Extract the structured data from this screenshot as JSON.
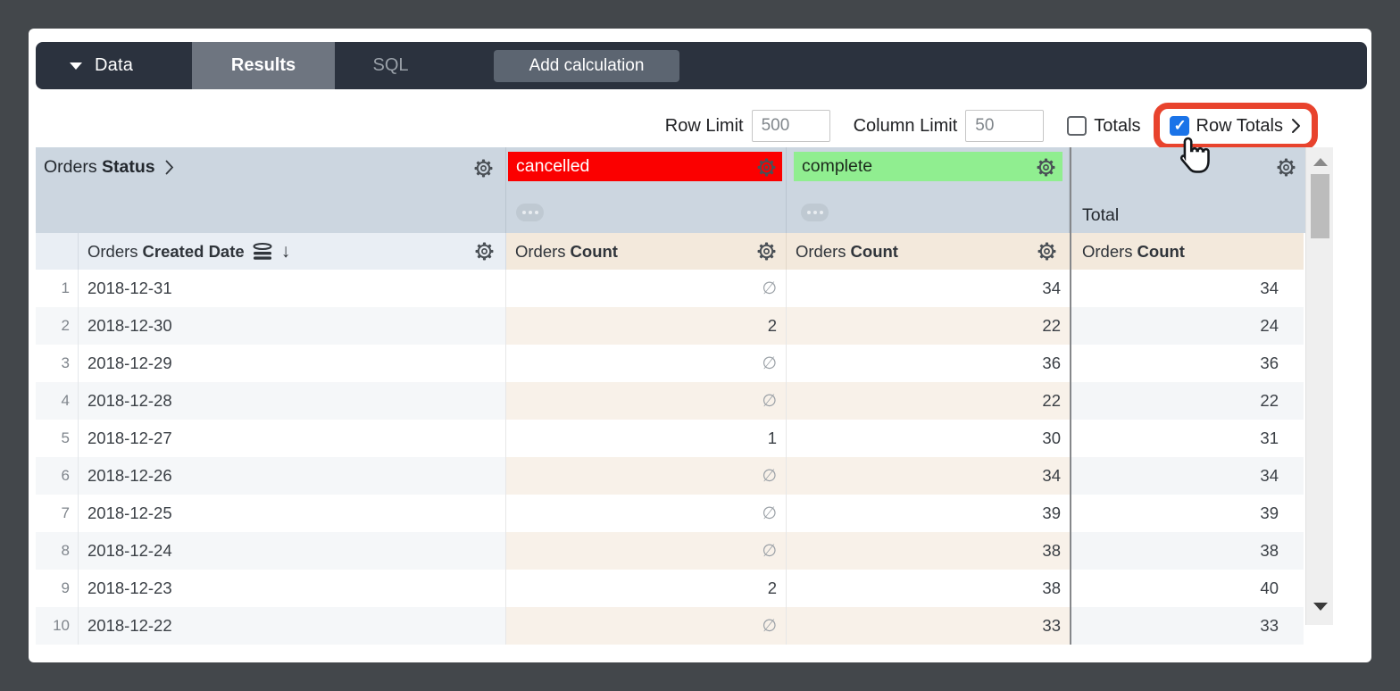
{
  "topbar": {
    "data_menu": "Data",
    "tabs": [
      {
        "label": "Results",
        "active": true
      },
      {
        "label": "SQL",
        "active": false
      }
    ],
    "add_calculation": "Add calculation"
  },
  "controls": {
    "row_limit_label": "Row Limit",
    "row_limit_value": "500",
    "column_limit_label": "Column Limit",
    "column_limit_value": "50",
    "totals_label": "Totals",
    "totals_checked": false,
    "row_totals_label": "Row Totals",
    "row_totals_checked": true
  },
  "pivot_header": {
    "rows_label_prefix": "Orders",
    "rows_label_bold": "Status",
    "columns": [
      {
        "label": "cancelled",
        "bg": "#fb0000",
        "text": "#ffffff"
      },
      {
        "label": "complete",
        "bg": "#90ee90",
        "text": "#1d2b1d"
      }
    ],
    "total_label": "Total"
  },
  "column_header": {
    "date_prefix": "Orders",
    "date_bold": "Created Date",
    "count_prefix": "Orders",
    "count_bold": "Count"
  },
  "table": {
    "null_symbol": "∅",
    "rows": [
      {
        "n": "1",
        "date": "2018-12-31",
        "cancelled": null,
        "complete": "34",
        "total": "34"
      },
      {
        "n": "2",
        "date": "2018-12-30",
        "cancelled": "2",
        "complete": "22",
        "total": "24"
      },
      {
        "n": "3",
        "date": "2018-12-29",
        "cancelled": null,
        "complete": "36",
        "total": "36"
      },
      {
        "n": "4",
        "date": "2018-12-28",
        "cancelled": null,
        "complete": "22",
        "total": "22"
      },
      {
        "n": "5",
        "date": "2018-12-27",
        "cancelled": "1",
        "complete": "30",
        "total": "31"
      },
      {
        "n": "6",
        "date": "2018-12-26",
        "cancelled": null,
        "complete": "34",
        "total": "34"
      },
      {
        "n": "7",
        "date": "2018-12-25",
        "cancelled": null,
        "complete": "39",
        "total": "39"
      },
      {
        "n": "8",
        "date": "2018-12-24",
        "cancelled": null,
        "complete": "38",
        "total": "38"
      },
      {
        "n": "9",
        "date": "2018-12-23",
        "cancelled": "2",
        "complete": "38",
        "total": "40"
      },
      {
        "n": "10",
        "date": "2018-12-22",
        "cancelled": null,
        "complete": "33",
        "total": "33"
      }
    ]
  },
  "annotation": {
    "highlight_border_color": "#e8432d",
    "cursor_icon": "hand-pointer"
  },
  "colors": {
    "topbar_bg": "#2b323e",
    "active_tab_bg": "#6e7580",
    "checkbox_checked_blue": "#1a73e8",
    "pivot_band_bg": "#ccd6e0",
    "date_header_bg": "#e9eef4",
    "measure_header_bg": "#f3e9dc"
  }
}
